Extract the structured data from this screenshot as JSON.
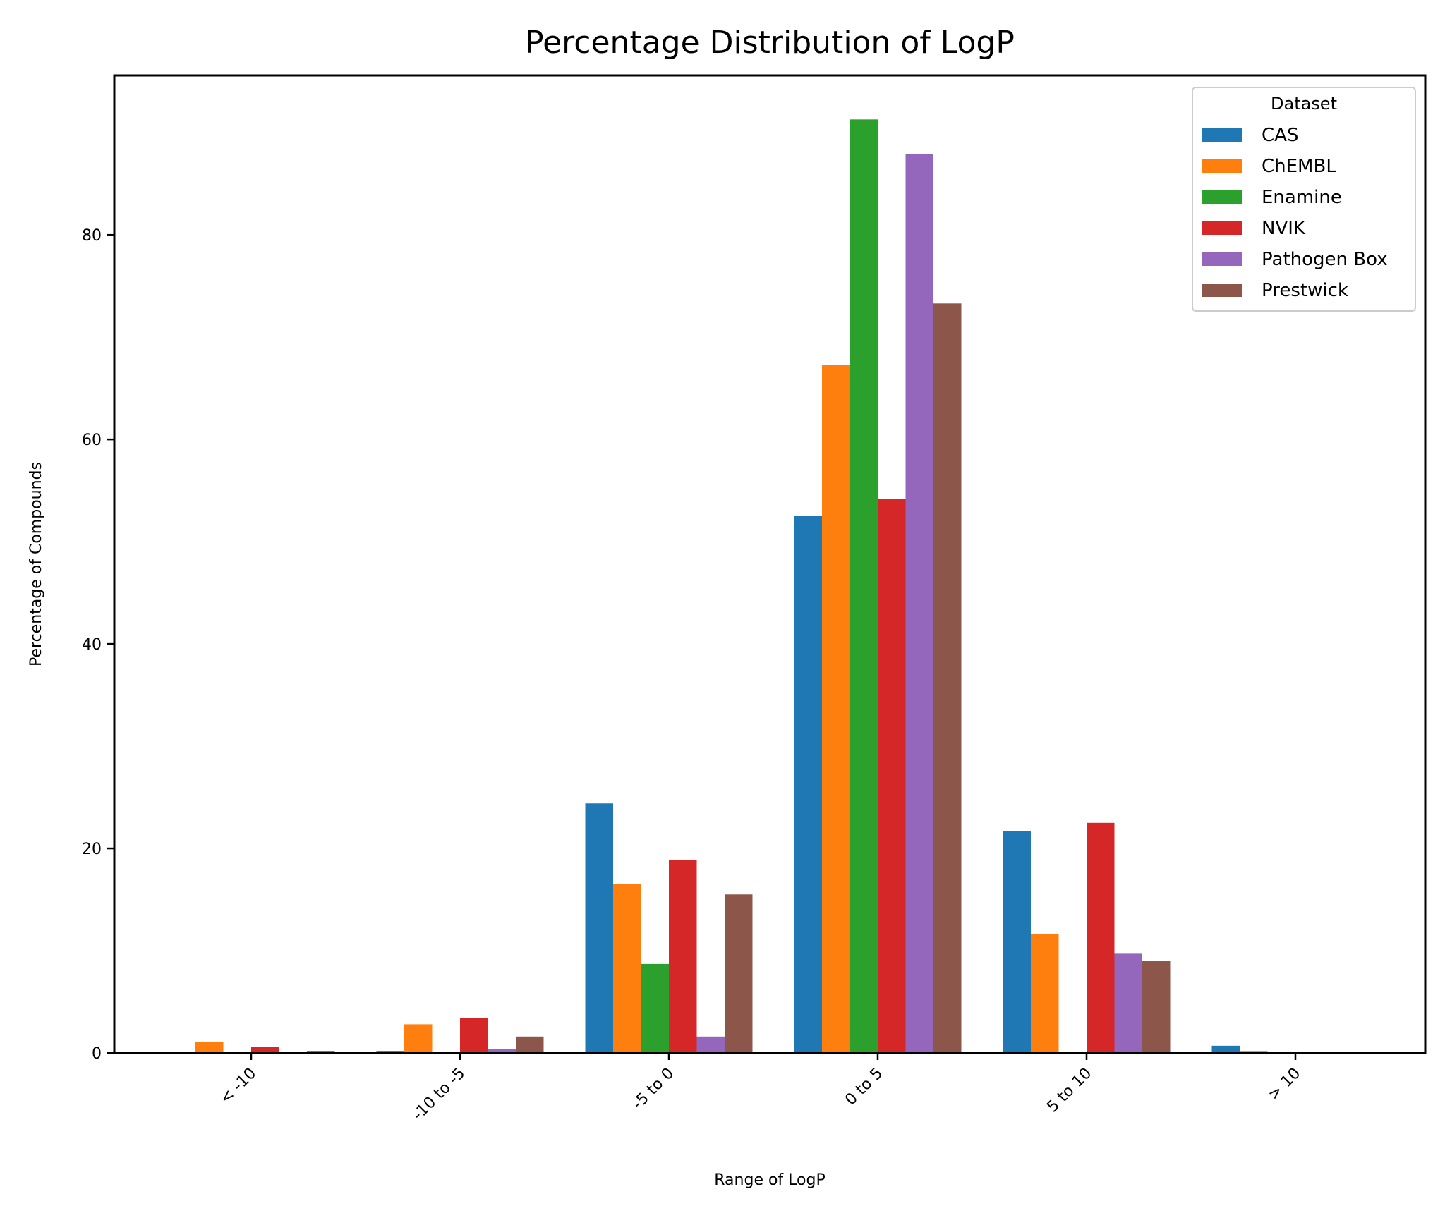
{
  "chart_data": {
    "type": "bar",
    "title": "Percentage Distribution of LogP",
    "xlabel": "Range of LogP",
    "ylabel": "Percentage of Compounds",
    "categories": [
      "< -10",
      "-10 to -5",
      "-5 to 0",
      "0 to 5",
      "5 to 10",
      "> 10"
    ],
    "ylim": [
      0,
      95.6
    ],
    "yticks": [
      0,
      20,
      40,
      60,
      80
    ],
    "legend": {
      "title": "Dataset",
      "placement": "upper-right"
    },
    "grid": false,
    "series": [
      {
        "name": "CAS",
        "color": "#1f77b4",
        "values": [
          0.0,
          0.2,
          24.4,
          52.5,
          21.7,
          0.7
        ]
      },
      {
        "name": "ChEMBL",
        "color": "#ff7f0e",
        "values": [
          1.1,
          2.8,
          16.5,
          67.3,
          11.6,
          0.2
        ]
      },
      {
        "name": "Enamine",
        "color": "#2ca02c",
        "values": [
          0.0,
          0.0,
          8.7,
          91.3,
          0.0,
          0.0
        ]
      },
      {
        "name": "NVIK",
        "color": "#d62728",
        "values": [
          0.6,
          3.4,
          18.9,
          54.2,
          22.5,
          0.0
        ]
      },
      {
        "name": "Pathogen Box",
        "color": "#9467bd",
        "values": [
          0.0,
          0.4,
          1.6,
          87.9,
          9.7,
          0.0
        ]
      },
      {
        "name": "Prestwick",
        "color": "#8c564b",
        "values": [
          0.2,
          1.6,
          15.5,
          73.3,
          9.0,
          0.0
        ]
      }
    ]
  }
}
